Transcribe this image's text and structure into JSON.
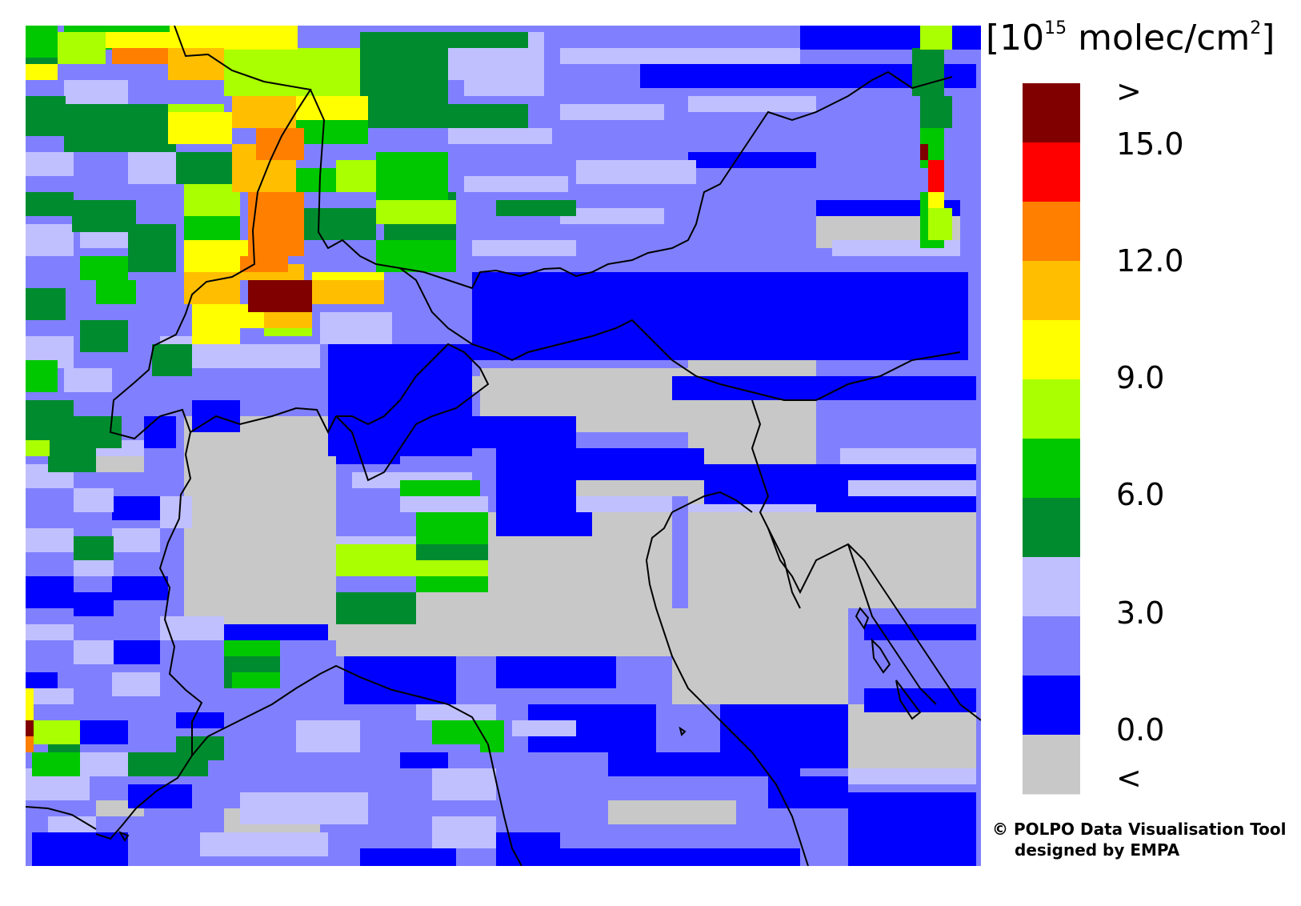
{
  "legend": {
    "unit_prefix": "[10",
    "unit_exponent": "15",
    "unit_suffix": " molec/cm",
    "unit_power": "2",
    "unit_close": "]",
    "top_label": ">",
    "bottom_label": "<",
    "tick_labels": [
      "15.0",
      "12.0",
      "9.0",
      "6.0",
      "3.0",
      "0.0"
    ],
    "colors_top_to_bottom": [
      "#800000",
      "#ff0000",
      "#ff8000",
      "#ffbf00",
      "#ffff00",
      "#aaff00",
      "#00c800",
      "#008c2e",
      "#c0c0ff",
      "#8080ff",
      "#0000ff",
      "#c8c8c8"
    ]
  },
  "credit": {
    "line1": "© POLPO Data Visualisation Tool",
    "line2": "designed by EMPA"
  },
  "map": {
    "background_color": "#8080ff",
    "border_color": "#000000",
    "class_colors": {
      "gray": "#c8c8c8",
      "blue": "#0000ff",
      "medblue": "#8080ff",
      "lightblue": "#c0c0ff",
      "darkgreen": "#008c2e",
      "green": "#00c800",
      "lime": "#aaff00",
      "yellow": "#ffff00",
      "orange": "#ffbf00",
      "darkorange": "#ff8000",
      "red": "#ff0000",
      "maroon": "#800000"
    }
  }
}
